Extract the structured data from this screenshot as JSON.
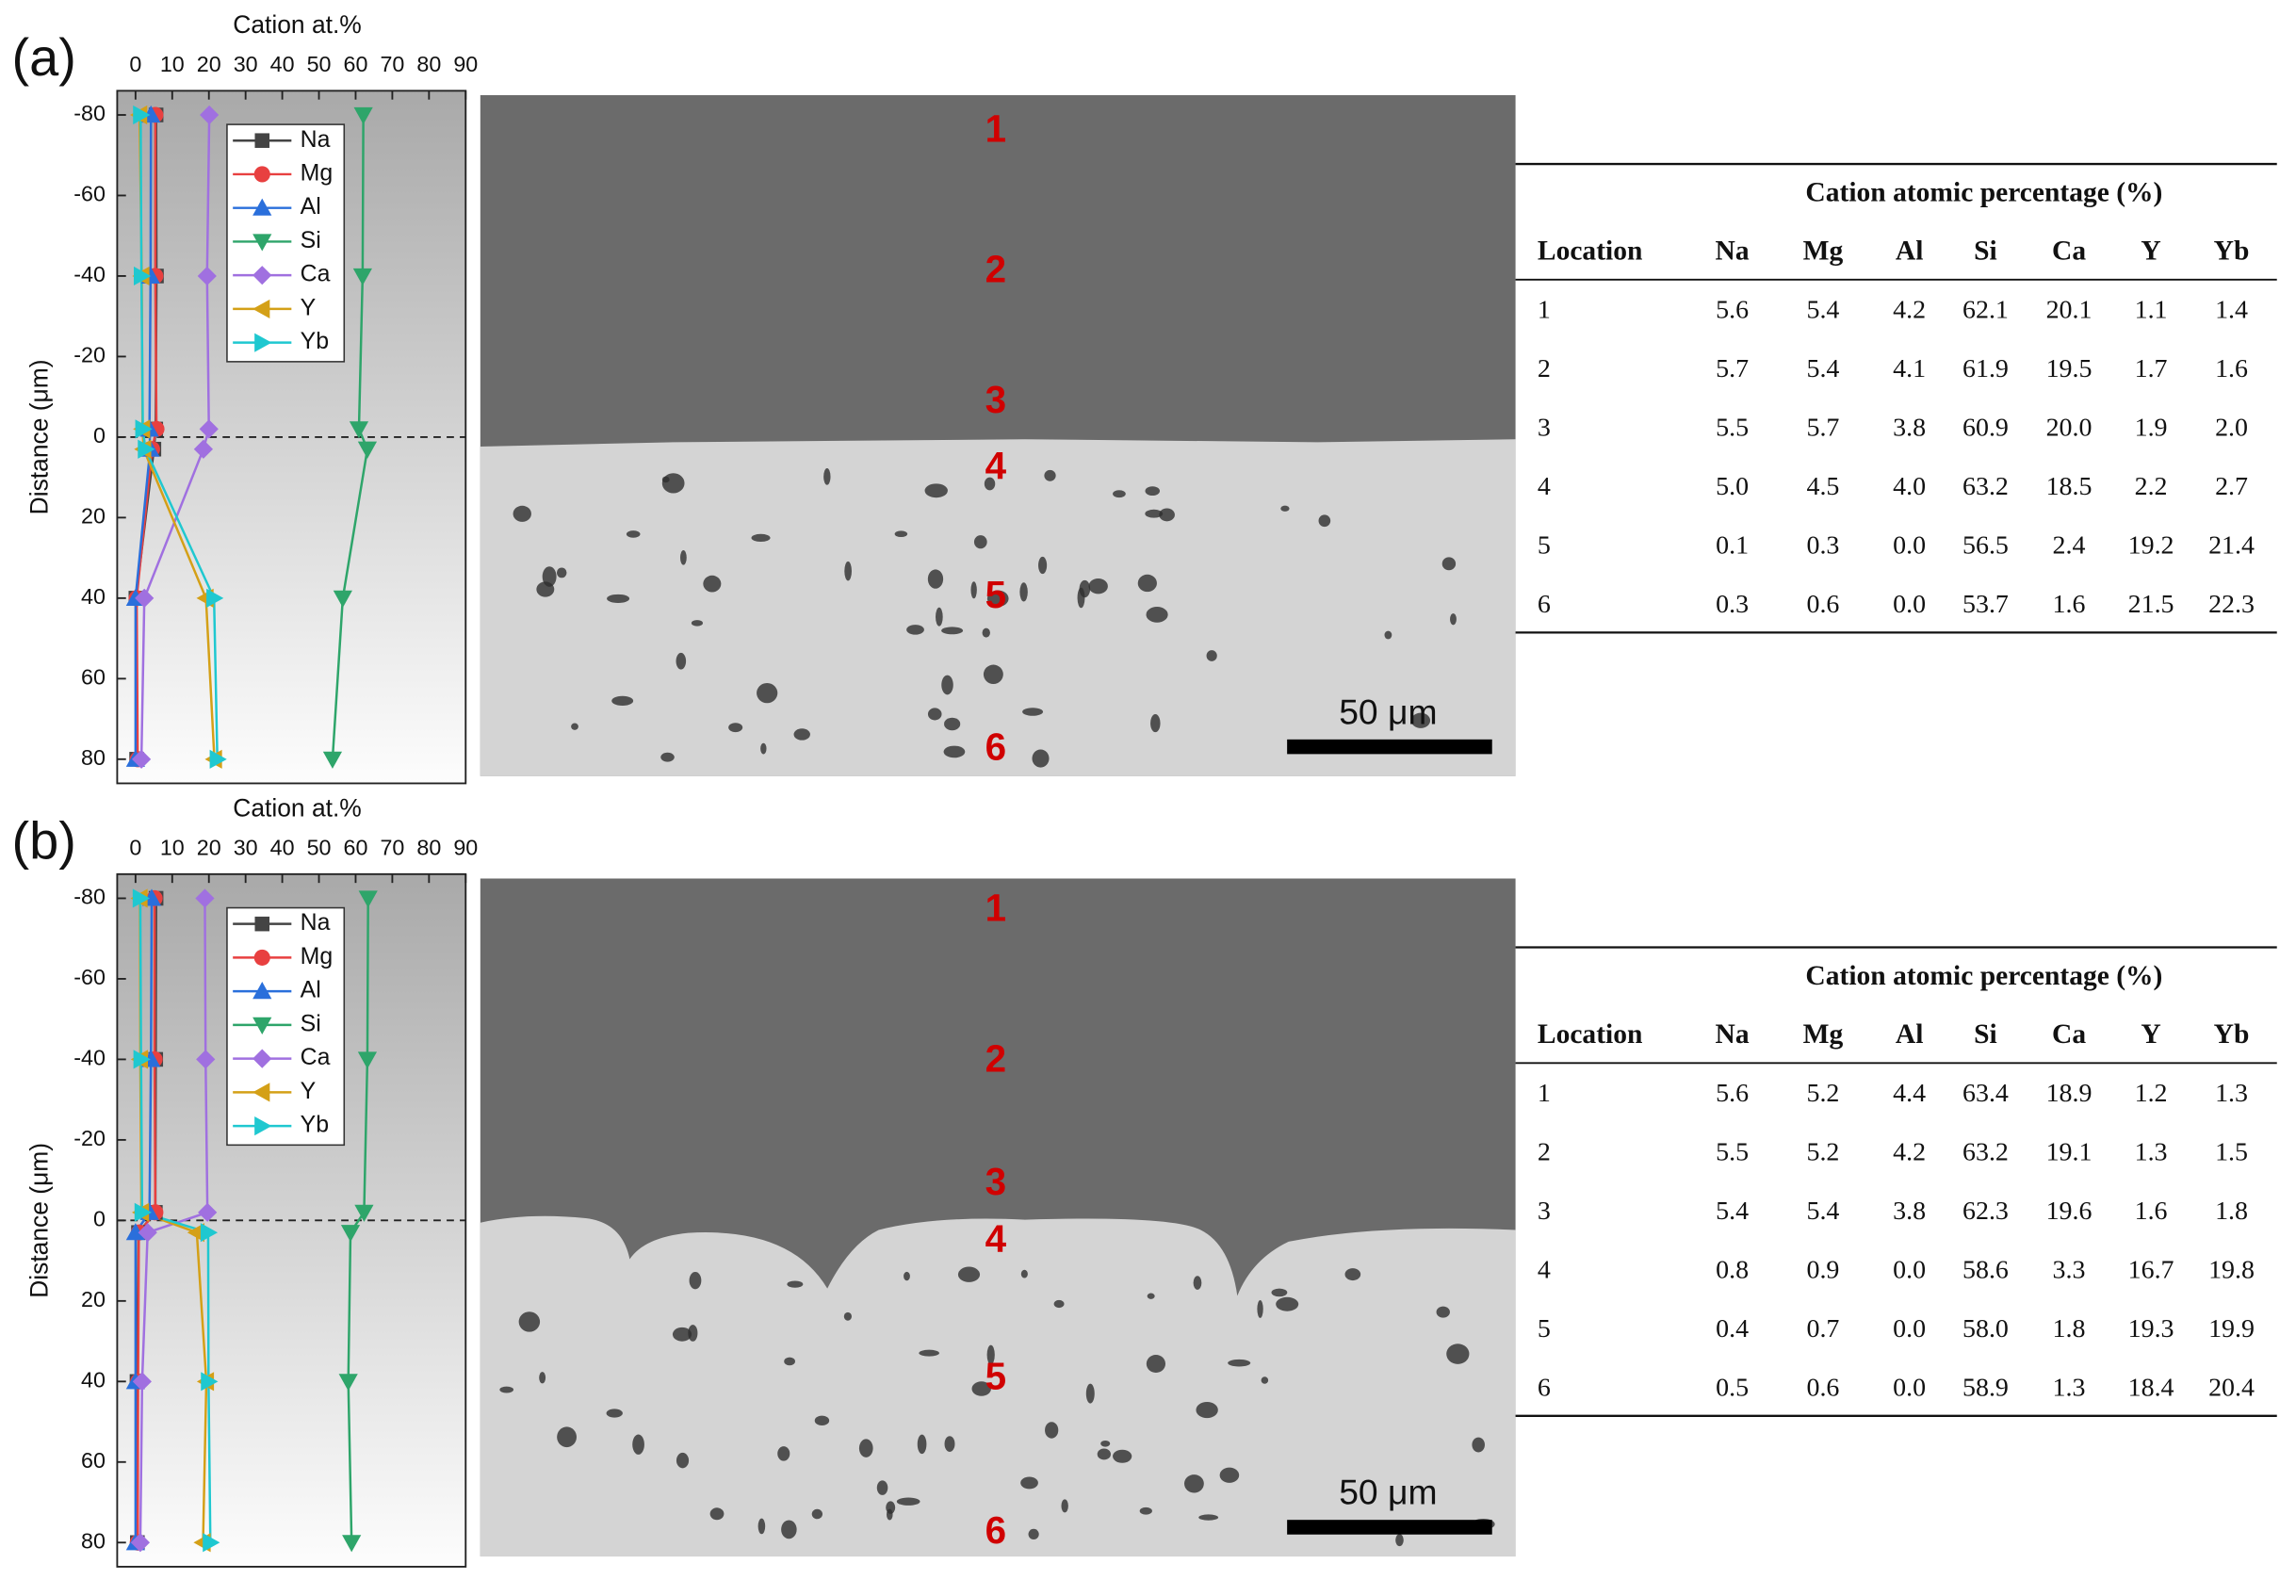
{
  "chart_data": [
    {
      "type": "line",
      "label": "(a)",
      "x_label": "Cation at.%",
      "y_label": "Distance (μm)",
      "xlim": [
        -5,
        90
      ],
      "xticks": [
        0,
        10,
        20,
        30,
        40,
        50,
        60,
        70,
        80,
        90
      ],
      "ylim": [
        -86,
        86
      ],
      "yticks": [
        -80,
        -60,
        -40,
        -20,
        0,
        20,
        40,
        60,
        80
      ],
      "reverse_y": true,
      "hline": 0,
      "legend": "upper center",
      "y": [
        -80,
        -40,
        -2,
        3,
        40,
        80
      ],
      "series": [
        {
          "name": "Na",
          "color": "#444444",
          "marker": "square",
          "values": [
            5.6,
            5.7,
            5.5,
            5.0,
            0.1,
            0.3
          ]
        },
        {
          "name": "Mg",
          "color": "#e84040",
          "marker": "circle",
          "values": [
            5.4,
            5.4,
            5.7,
            4.5,
            0.3,
            0.6
          ]
        },
        {
          "name": "Al",
          "color": "#2a6fdb",
          "marker": "triangle-up",
          "values": [
            4.2,
            4.1,
            3.8,
            4.0,
            0.0,
            0.0
          ]
        },
        {
          "name": "Si",
          "color": "#2ea56a",
          "marker": "triangle-down",
          "values": [
            62.1,
            61.9,
            60.9,
            63.2,
            56.5,
            53.7
          ]
        },
        {
          "name": "Ca",
          "color": "#a070e0",
          "marker": "diamond",
          "values": [
            20.1,
            19.5,
            20.0,
            18.5,
            2.4,
            1.6
          ]
        },
        {
          "name": "Y",
          "color": "#d4a017",
          "marker": "triangle-left",
          "values": [
            1.1,
            1.7,
            1.9,
            2.2,
            19.2,
            21.5
          ]
        },
        {
          "name": "Yb",
          "color": "#1fc8d0",
          "marker": "triangle-right",
          "values": [
            1.4,
            1.6,
            2.0,
            2.7,
            21.4,
            22.3
          ]
        }
      ]
    },
    {
      "type": "line",
      "label": "(b)",
      "x_label": "Cation at.%",
      "y_label": "Distance (μm)",
      "xlim": [
        -5,
        90
      ],
      "xticks": [
        0,
        10,
        20,
        30,
        40,
        50,
        60,
        70,
        80,
        90
      ],
      "ylim": [
        -86,
        86
      ],
      "yticks": [
        -80,
        -60,
        -40,
        -20,
        0,
        20,
        40,
        60,
        80
      ],
      "reverse_y": true,
      "hline": 0,
      "legend": "upper center",
      "y": [
        -80,
        -40,
        -2,
        3,
        40,
        80
      ],
      "series": [
        {
          "name": "Na",
          "color": "#444444",
          "marker": "square",
          "values": [
            5.6,
            5.5,
            5.4,
            0.8,
            0.4,
            0.5
          ]
        },
        {
          "name": "Mg",
          "color": "#e84040",
          "marker": "circle",
          "values": [
            5.2,
            5.2,
            5.4,
            0.9,
            0.7,
            0.6
          ]
        },
        {
          "name": "Al",
          "color": "#2a6fdb",
          "marker": "triangle-up",
          "values": [
            4.4,
            4.2,
            3.8,
            0.0,
            0.0,
            0.0
          ]
        },
        {
          "name": "Si",
          "color": "#2ea56a",
          "marker": "triangle-down",
          "values": [
            63.4,
            63.2,
            62.3,
            58.6,
            58.0,
            58.9
          ]
        },
        {
          "name": "Ca",
          "color": "#a070e0",
          "marker": "diamond",
          "values": [
            18.9,
            19.1,
            19.6,
            3.3,
            1.8,
            1.3
          ]
        },
        {
          "name": "Y",
          "color": "#d4a017",
          "marker": "triangle-left",
          "values": [
            1.2,
            1.3,
            1.6,
            16.7,
            19.3,
            18.4
          ]
        },
        {
          "name": "Yb",
          "color": "#1fc8d0",
          "marker": "triangle-right",
          "values": [
            1.3,
            1.5,
            1.8,
            19.8,
            19.9,
            20.4
          ]
        }
      ]
    }
  ],
  "images": [
    {
      "labels": [
        "1",
        "2",
        "3",
        "4",
        "5",
        "6"
      ],
      "scale_bar": "50 μm"
    },
    {
      "labels": [
        "1",
        "2",
        "3",
        "4",
        "5",
        "6"
      ],
      "scale_bar": "50 μm"
    }
  ],
  "tables": [
    {
      "title": "Cation atomic percentage (%)",
      "header": [
        "Location",
        "Na",
        "Mg",
        "Al",
        "Si",
        "Ca",
        "Y",
        "Yb"
      ],
      "rows": [
        [
          "1",
          "5.6",
          "5.4",
          "4.2",
          "62.1",
          "20.1",
          "1.1",
          "1.4"
        ],
        [
          "2",
          "5.7",
          "5.4",
          "4.1",
          "61.9",
          "19.5",
          "1.7",
          "1.6"
        ],
        [
          "3",
          "5.5",
          "5.7",
          "3.8",
          "60.9",
          "20.0",
          "1.9",
          "2.0"
        ],
        [
          "4",
          "5.0",
          "4.5",
          "4.0",
          "63.2",
          "18.5",
          "2.2",
          "2.7"
        ],
        [
          "5",
          "0.1",
          "0.3",
          "0.0",
          "56.5",
          "2.4",
          "19.2",
          "21.4"
        ],
        [
          "6",
          "0.3",
          "0.6",
          "0.0",
          "53.7",
          "1.6",
          "21.5",
          "22.3"
        ]
      ]
    },
    {
      "title": "Cation atomic percentage (%)",
      "header": [
        "Location",
        "Na",
        "Mg",
        "Al",
        "Si",
        "Ca",
        "Y",
        "Yb"
      ],
      "rows": [
        [
          "1",
          "5.6",
          "5.2",
          "4.4",
          "63.4",
          "18.9",
          "1.2",
          "1.3"
        ],
        [
          "2",
          "5.5",
          "5.2",
          "4.2",
          "63.2",
          "19.1",
          "1.3",
          "1.5"
        ],
        [
          "3",
          "5.4",
          "5.4",
          "3.8",
          "62.3",
          "19.6",
          "1.6",
          "1.8"
        ],
        [
          "4",
          "0.8",
          "0.9",
          "0.0",
          "58.6",
          "3.3",
          "16.7",
          "19.8"
        ],
        [
          "5",
          "0.4",
          "0.7",
          "0.0",
          "58.0",
          "1.8",
          "19.3",
          "19.9"
        ],
        [
          "6",
          "0.5",
          "0.6",
          "0.0",
          "58.9",
          "1.3",
          "18.4",
          "20.4"
        ]
      ]
    }
  ]
}
